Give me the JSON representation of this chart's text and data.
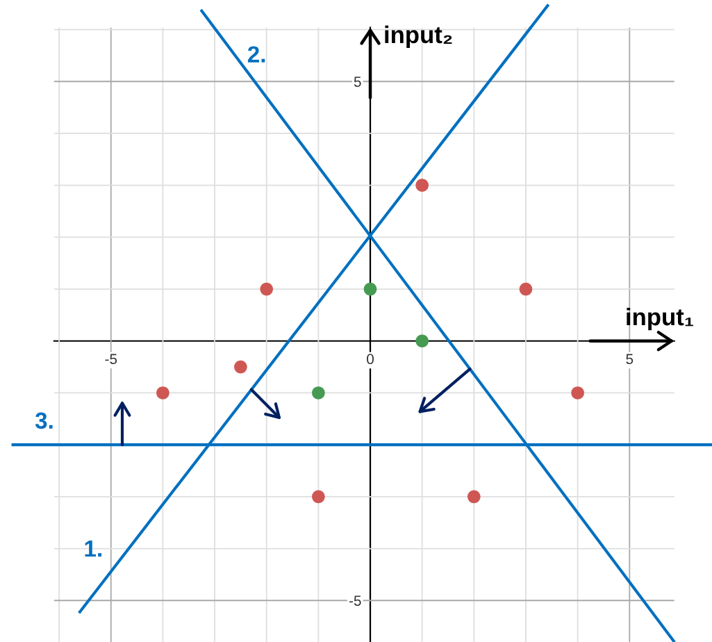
{
  "chart_data": {
    "type": "scatter",
    "xlabel": "input₁",
    "ylabel": "input₂",
    "xlim": [
      -7.14,
      6.59
    ],
    "ylim": [
      -5.8,
      6.57
    ],
    "xticks": [
      {
        "value": -6,
        "label": null
      },
      -5,
      {
        "value": -4,
        "label": null
      },
      {
        "value": -3,
        "label": null
      },
      {
        "value": -2,
        "label": null
      },
      {
        "value": -1,
        "label": null
      },
      0,
      {
        "value": 1,
        "label": null
      },
      {
        "value": 2,
        "label": null
      },
      {
        "value": 3,
        "label": null
      },
      {
        "value": 4,
        "label": null
      },
      5
    ],
    "yticks": [
      -5,
      {
        "value": -4,
        "label": null
      },
      {
        "value": -3,
        "label": null
      },
      {
        "value": -2,
        "label": null
      },
      {
        "value": -1,
        "label": null
      },
      {
        "value": 0,
        "label": null
      },
      {
        "value": 1,
        "label": null
      },
      {
        "value": 2,
        "label": null
      },
      {
        "value": 3,
        "label": null
      },
      {
        "value": 4,
        "label": null
      },
      5,
      {
        "value": 6,
        "label": null
      }
    ],
    "grid": true,
    "marker": "circle",
    "series": [
      {
        "color": "#cf5753",
        "x": [
          1,
          -2,
          3,
          -2.5,
          -4,
          4,
          -1,
          2
        ],
        "values": [
          3,
          1,
          1,
          -0.5,
          -1,
          -1,
          -3,
          -3
        ]
      },
      {
        "color": "#469a52",
        "x": [
          0,
          1,
          -1
        ],
        "values": [
          1,
          0,
          -1
        ]
      },
      {
        "type": "line",
        "name": "1.",
        "marker": "none",
        "color": "#0070c0",
        "x": [
          -5.6,
          3.42
        ],
        "values": [
          -5.22,
          6.46
        ]
      },
      {
        "type": "line",
        "name": "2.",
        "marker": "none",
        "color": "#0070c0",
        "x": [
          -3.25,
          5.85
        ],
        "values": [
          6.36,
          -5.78
        ]
      },
      {
        "type": "line",
        "name": "3.",
        "marker": "none",
        "color": "#0070c0",
        "x": [
          -6.89,
          6.59
        ],
        "values": [
          -2,
          -2
        ]
      }
    ]
  }
}
